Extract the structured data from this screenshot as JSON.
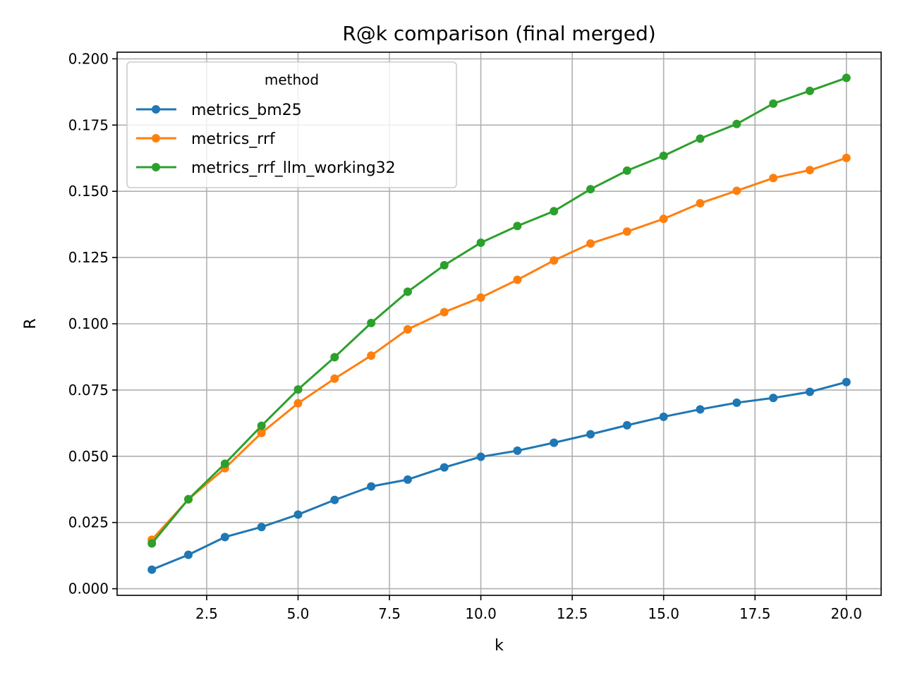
{
  "chart_data": {
    "type": "line",
    "title": "R@k comparison (final merged)",
    "xlabel": "k",
    "ylabel": "R",
    "xlim": [
      0.05,
      20.95
    ],
    "ylim": [
      -0.0025,
      0.2025
    ],
    "xticks": [
      2.5,
      5.0,
      7.5,
      10.0,
      12.5,
      15.0,
      17.5,
      20.0
    ],
    "xtick_labels": [
      "2.5",
      "5.0",
      "7.5",
      "10.0",
      "12.5",
      "15.0",
      "17.5",
      "20.0"
    ],
    "yticks": [
      0.0,
      0.025,
      0.05,
      0.075,
      0.1,
      0.125,
      0.15,
      0.175,
      0.2
    ],
    "ytick_labels": [
      "0.000",
      "0.025",
      "0.050",
      "0.075",
      "0.100",
      "0.125",
      "0.150",
      "0.175",
      "0.200"
    ],
    "grid": true,
    "legend": {
      "title": "method",
      "placement": "top-left"
    },
    "x": [
      1,
      2,
      3,
      4,
      5,
      6,
      7,
      8,
      9,
      10,
      11,
      12,
      13,
      14,
      15,
      16,
      17,
      18,
      19,
      20
    ],
    "series": [
      {
        "name": "metrics_bm25",
        "color": "#1f77b4",
        "values": [
          0.0072,
          0.0128,
          0.0195,
          0.0233,
          0.028,
          0.0335,
          0.0386,
          0.0412,
          0.0458,
          0.0498,
          0.0521,
          0.0551,
          0.0583,
          0.0617,
          0.0649,
          0.0677,
          0.0702,
          0.072,
          0.0743,
          0.078
        ]
      },
      {
        "name": "metrics_rrf",
        "color": "#ff7f0e",
        "values": [
          0.0185,
          0.0337,
          0.0455,
          0.0588,
          0.07,
          0.0793,
          0.088,
          0.0979,
          0.1044,
          0.1099,
          0.1166,
          0.1239,
          0.1303,
          0.1348,
          0.1396,
          0.1455,
          0.1502,
          0.155,
          0.158,
          0.1626
        ]
      },
      {
        "name": "metrics_rrf_llm_working32",
        "color": "#2ca02c",
        "values": [
          0.0171,
          0.0338,
          0.0472,
          0.0615,
          0.0752,
          0.0874,
          0.1003,
          0.1121,
          0.1221,
          0.1306,
          0.1369,
          0.1425,
          0.1508,
          0.1578,
          0.1634,
          0.1699,
          0.1754,
          0.1831,
          0.1879,
          0.1928
        ]
      }
    ]
  }
}
